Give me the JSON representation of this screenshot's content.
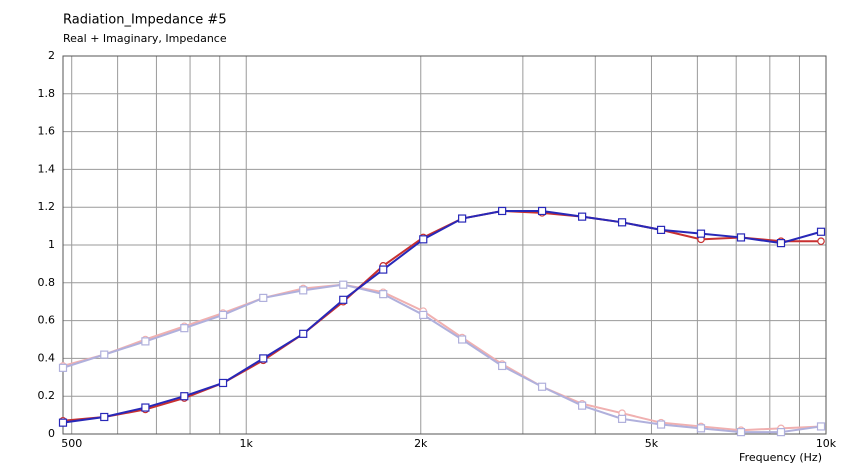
{
  "chart_data": {
    "type": "line",
    "title": "Radiation_Impedance #5",
    "subtitle": "Real + Imaginary, Impedance",
    "x_label": "Frequency  (Hz)",
    "x": [
      483,
      569,
      670,
      782,
      912,
      1070,
      1254,
      1470,
      1723,
      2020,
      2357,
      2763,
      3238,
      3796,
      4449,
      5194,
      6087,
      7135,
      8363,
      9804
    ],
    "series": [
      {
        "color": "#f0b0b0",
        "marker": "circle",
        "values": [
          0.36,
          0.42,
          0.5,
          0.57,
          0.64,
          0.72,
          0.77,
          0.79,
          0.75,
          0.65,
          0.51,
          0.37,
          0.25,
          0.16,
          0.11,
          0.06,
          0.04,
          0.02,
          0.03,
          0.04
        ]
      },
      {
        "color": "#b0b0dc",
        "marker": "square",
        "values": [
          0.35,
          0.42,
          0.49,
          0.56,
          0.63,
          0.72,
          0.76,
          0.79,
          0.74,
          0.63,
          0.5,
          0.36,
          0.25,
          0.15,
          0.08,
          0.05,
          0.03,
          0.01,
          0.01,
          0.04
        ]
      },
      {
        "color": "#c83030",
        "marker": "circle",
        "values": [
          0.07,
          0.09,
          0.13,
          0.19,
          0.27,
          0.39,
          0.53,
          0.7,
          0.89,
          1.04,
          1.14,
          1.18,
          1.17,
          1.15,
          1.12,
          1.08,
          1.03,
          1.04,
          1.02,
          1.02
        ]
      },
      {
        "color": "#2828b8",
        "marker": "square",
        "values": [
          0.06,
          0.09,
          0.14,
          0.2,
          0.27,
          0.4,
          0.53,
          0.71,
          0.87,
          1.03,
          1.14,
          1.18,
          1.18,
          1.15,
          1.12,
          1.08,
          1.06,
          1.04,
          1.01,
          1.07
        ]
      }
    ],
    "xlog": true,
    "xlim": [
      483,
      10000
    ],
    "xticks": [
      500,
      {
        "value": 1000,
        "label": "1k"
      },
      {
        "value": 2000,
        "label": "2k"
      },
      {
        "value": 5000,
        "label": "5k"
      },
      {
        "value": 10000,
        "label": "10k"
      }
    ],
    "xgrid": [
      600,
      700,
      800,
      900,
      3000,
      4000,
      6000,
      7000,
      8000,
      9000
    ],
    "ylim": [
      0,
      2
    ],
    "yticks": [
      0,
      0.2,
      0.4,
      0.6,
      0.8,
      1,
      1.2,
      1.4,
      1.6,
      1.8,
      2
    ],
    "grid": true
  }
}
